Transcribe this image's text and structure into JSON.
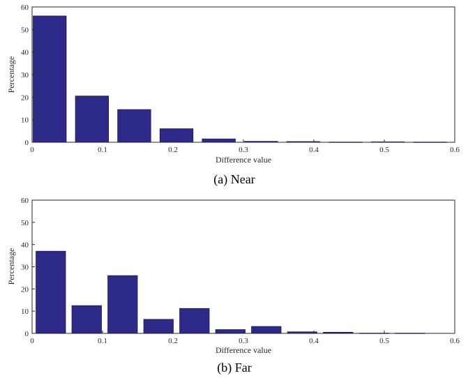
{
  "colors": {
    "bar": "#2e2a8a",
    "bar_edge": "#1a1850",
    "axis": "#262626"
  },
  "chart_data": [
    {
      "type": "bar",
      "caption": "(a) Near",
      "xlabel": "Difference value",
      "ylabel": "Percentage",
      "xlim": [
        0,
        0.6
      ],
      "ylim": [
        0,
        60
      ],
      "xticks": [
        "0",
        "0.1",
        "0.2",
        "0.3",
        "0.4",
        "0.5",
        "0.6"
      ],
      "yticks": [
        "0",
        "10",
        "20",
        "30",
        "40",
        "50",
        "60"
      ],
      "bar_width": 0.047,
      "x": [
        0.025,
        0.085,
        0.145,
        0.205,
        0.265,
        0.325,
        0.385,
        0.445,
        0.505,
        0.565
      ],
      "values": [
        56,
        20.5,
        14.5,
        6,
        1.5,
        0.4,
        0.3,
        0.1,
        0.2,
        0.1
      ]
    },
    {
      "type": "bar",
      "caption": "(b) Far",
      "xlabel": "Difference value",
      "ylabel": "Percentage",
      "xlim": [
        0,
        0.6
      ],
      "ylim": [
        0,
        60
      ],
      "xticks": [
        "0",
        "0.1",
        "0.2",
        "0.3",
        "0.4",
        "0.5",
        "0.6"
      ],
      "yticks": [
        "0",
        "10",
        "20",
        "30",
        "40",
        "50",
        "60"
      ],
      "bar_width": 0.042,
      "x": [
        0.0265,
        0.0775,
        0.1285,
        0.1795,
        0.2305,
        0.2815,
        0.3325,
        0.3835,
        0.4345,
        0.4855,
        0.5365
      ],
      "values": [
        37,
        12.5,
        26,
        6.3,
        11.2,
        1.7,
        3.1,
        0.7,
        0.5,
        0.1,
        0.1
      ]
    }
  ]
}
